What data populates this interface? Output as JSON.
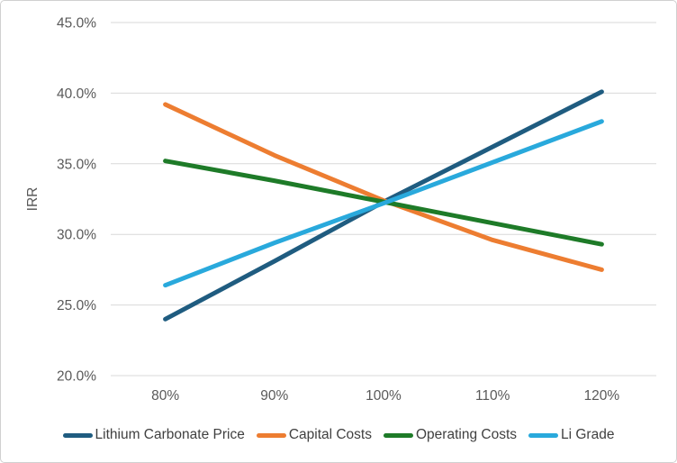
{
  "chart": {
    "background": "#FFFFFF",
    "border_color": "#D0D0D0",
    "gridline_color": "#D9D9D9",
    "axis_text_color": "#595959",
    "legend_text_color": "#404040"
  },
  "chart_data": {
    "type": "line",
    "title": "",
    "xlabel": "",
    "ylabel": "IRR",
    "categories": [
      "80%",
      "90%",
      "100%",
      "110%",
      "120%"
    ],
    "series": [
      {
        "name": "Lithium Carbonate Price",
        "color": "#1F5C80",
        "values": [
          24.0,
          28.1,
          32.3,
          36.2,
          40.1
        ]
      },
      {
        "name": "Capital Costs",
        "color": "#ED7D31",
        "values": [
          39.2,
          35.6,
          32.4,
          29.6,
          27.5
        ]
      },
      {
        "name": "Operating Costs",
        "color": "#1E7B28",
        "values": [
          35.2,
          33.8,
          32.3,
          30.8,
          29.3
        ]
      },
      {
        "name": "Li Grade",
        "color": "#29A9DC",
        "values": [
          26.4,
          29.4,
          32.2,
          35.1,
          38.0
        ]
      }
    ],
    "ylim": [
      20,
      45
    ],
    "ytick_step": 5,
    "ytick_labels": [
      "20.0%",
      "25.0%",
      "30.0%",
      "35.0%",
      "40.0%",
      "45.0%"
    ],
    "grid": "horizontal",
    "legend_position": "bottom"
  }
}
